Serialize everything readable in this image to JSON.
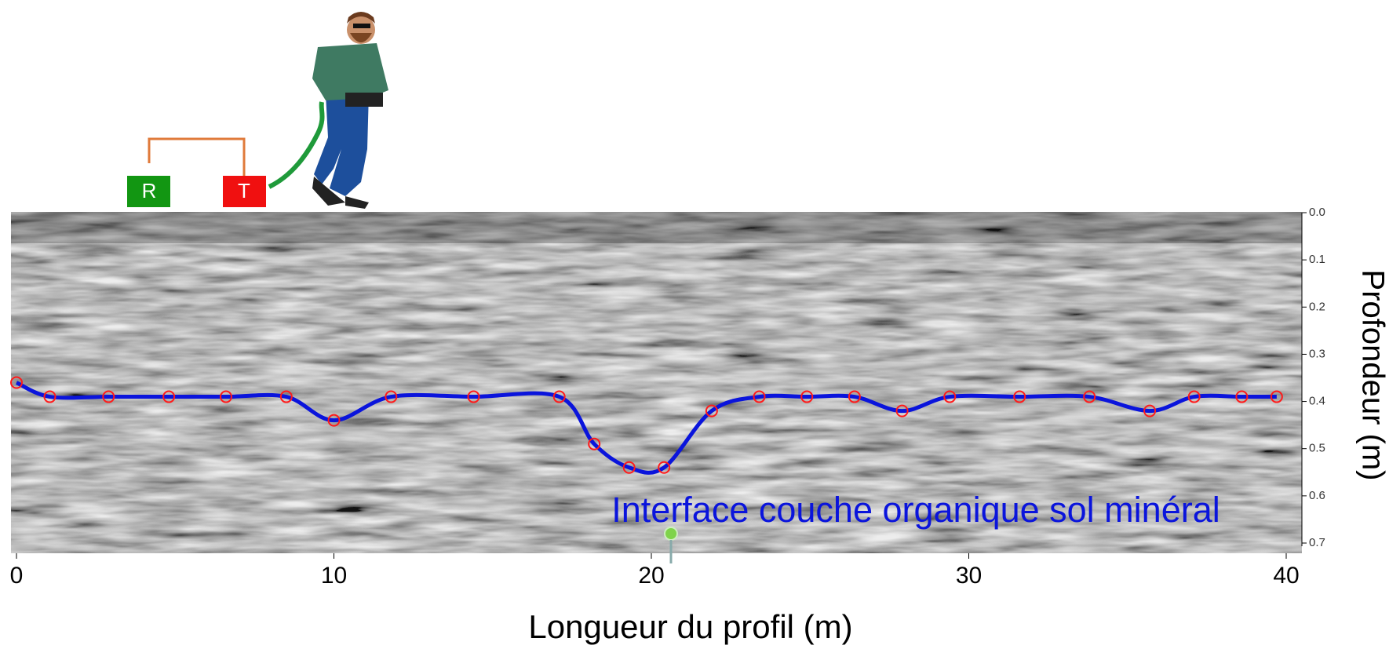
{
  "chart_data": {
    "type": "line",
    "annotation": "Interface couche organique sol minéral",
    "xlabel": "Longueur du profil (m)",
    "ylabel": "Profondeur (m)",
    "receiver_label": "R",
    "transmitter_label": "T",
    "x": [
      0,
      1.05,
      2.9,
      4.8,
      6.6,
      8.5,
      10.0,
      11.8,
      14.4,
      17.1,
      18.2,
      19.3,
      20.4,
      21.9,
      23.4,
      24.9,
      26.4,
      27.9,
      29.4,
      31.6,
      33.8,
      35.7,
      37.1,
      38.6,
      39.7
    ],
    "series": [
      {
        "color": "#0a14dc",
        "marker_color": "#ff1a1a",
        "values": [
          0.36,
          0.39,
          0.39,
          0.39,
          0.39,
          0.39,
          0.44,
          0.39,
          0.39,
          0.39,
          0.49,
          0.54,
          0.54,
          0.42,
          0.39,
          0.39,
          0.39,
          0.42,
          0.39,
          0.39,
          0.39,
          0.42,
          0.39,
          0.39,
          0.39
        ]
      }
    ],
    "xlim": [
      0,
      40
    ],
    "xticks": [
      0,
      10,
      20,
      30,
      40
    ],
    "ylim": [
      0,
      0.7
    ],
    "yticks": [
      {
        "value": 0,
        "label": "0.0"
      },
      0.1,
      0.2,
      0.3,
      0.4,
      0.5,
      0.6,
      0.7
    ],
    "y_inverted": true
  }
}
